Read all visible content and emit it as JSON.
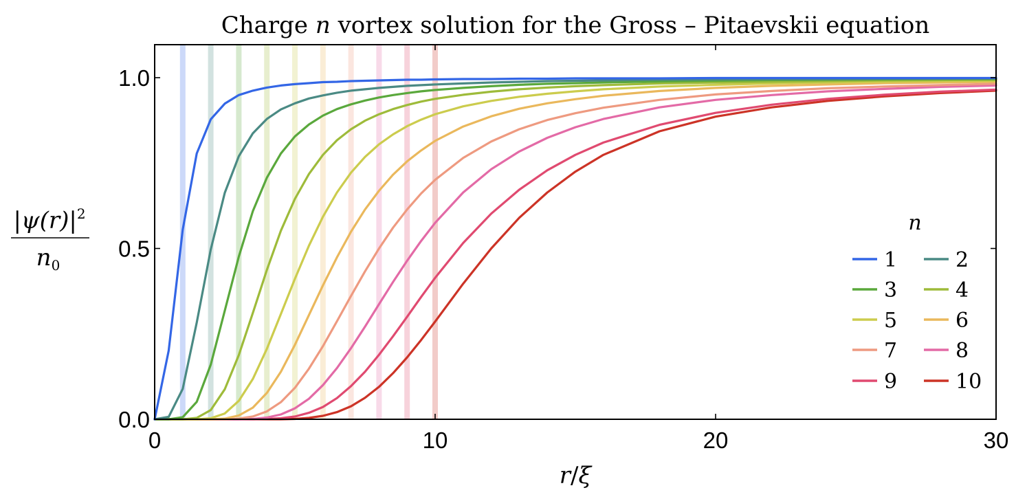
{
  "chart_data": {
    "type": "line",
    "title": "Charge n vortex solution for the Gross – Pitaevskii equation",
    "title_parts": {
      "prefix": "Charge ",
      "var": "n",
      "suffix": " vortex solution for the Gross – Pitaevskii equation"
    },
    "xlabel": "r/ξ",
    "xlabel_parts": {
      "num": "r",
      "slash": "/",
      "den": "ξ"
    },
    "ylabel": "|ψ(r)|² / n₀",
    "ylabel_parts": {
      "numerator": "|ψ(r)|",
      "exponent": "2",
      "denominator": "n",
      "den_sub": "0"
    },
    "xlim": [
      0,
      30
    ],
    "ylim": [
      0,
      1.1
    ],
    "xticks": [
      0,
      10,
      20,
      30
    ],
    "xtick_labels": [
      "0",
      "10",
      "20",
      "30"
    ],
    "yticks": [
      0,
      0.5,
      1
    ],
    "ytick_labels": [
      "0.0",
      "0.5",
      "1.0"
    ],
    "grid": false,
    "legend_title": "n",
    "legend_placement": "bottom-right",
    "vertical_markers": [
      1,
      2,
      3,
      4,
      5,
      6,
      7,
      8,
      9,
      10
    ],
    "x": [
      0,
      0.5,
      1,
      1.5,
      2,
      2.5,
      3,
      3.5,
      4,
      4.5,
      5,
      5.5,
      6,
      6.5,
      7,
      7.5,
      8,
      8.5,
      9,
      9.5,
      10,
      11,
      12,
      13,
      14,
      15,
      16,
      18,
      20,
      22,
      24,
      26,
      28,
      30
    ],
    "series": [
      {
        "name": "1",
        "color": "#3366e6",
        "values": [
          0,
          0.201,
          0.555,
          0.778,
          0.878,
          0.924,
          0.949,
          0.962,
          0.971,
          0.977,
          0.981,
          0.984,
          0.987,
          0.988,
          0.99,
          0.991,
          0.992,
          0.993,
          0.994,
          0.994,
          0.995,
          0.996,
          0.996,
          0.997,
          0.997,
          0.998,
          0.998,
          0.998,
          0.999,
          0.999,
          0.999,
          0.999,
          0.999,
          0.999
        ]
      },
      {
        "name": "2",
        "color": "#4a8a84",
        "values": [
          0,
          0.007,
          0.089,
          0.283,
          0.497,
          0.663,
          0.77,
          0.837,
          0.879,
          0.907,
          0.925,
          0.939,
          0.948,
          0.956,
          0.962,
          0.966,
          0.97,
          0.973,
          0.976,
          0.978,
          0.98,
          0.983,
          0.986,
          0.988,
          0.99,
          0.991,
          0.992,
          0.994,
          0.995,
          0.996,
          0.996,
          0.997,
          0.997,
          0.998
        ]
      },
      {
        "name": "3",
        "color": "#5aa83c",
        "values": [
          0,
          0,
          0.006,
          0.051,
          0.16,
          0.318,
          0.476,
          0.609,
          0.707,
          0.778,
          0.828,
          0.863,
          0.889,
          0.908,
          0.922,
          0.933,
          0.942,
          0.949,
          0.955,
          0.96,
          0.964,
          0.97,
          0.975,
          0.979,
          0.982,
          0.984,
          0.986,
          0.989,
          0.991,
          0.993,
          0.994,
          0.995,
          0.996,
          0.996
        ]
      },
      {
        "name": "4",
        "color": "#9ebb3a",
        "values": [
          0,
          0,
          0,
          0.004,
          0.027,
          0.088,
          0.188,
          0.311,
          0.437,
          0.552,
          0.645,
          0.718,
          0.774,
          0.817,
          0.849,
          0.874,
          0.893,
          0.908,
          0.92,
          0.93,
          0.938,
          0.95,
          0.959,
          0.966,
          0.971,
          0.975,
          0.978,
          0.983,
          0.986,
          0.988,
          0.99,
          0.992,
          0.993,
          0.994
        ]
      },
      {
        "name": "5",
        "color": "#cccc4d",
        "values": [
          0,
          0,
          0,
          0,
          0.003,
          0.017,
          0.054,
          0.118,
          0.206,
          0.308,
          0.411,
          0.508,
          0.593,
          0.664,
          0.722,
          0.768,
          0.805,
          0.834,
          0.858,
          0.877,
          0.893,
          0.916,
          0.932,
          0.944,
          0.953,
          0.96,
          0.966,
          0.974,
          0.979,
          0.983,
          0.986,
          0.988,
          0.99,
          0.991
        ]
      },
      {
        "name": "6",
        "color": "#eab85c",
        "values": [
          0,
          0,
          0,
          0,
          0,
          0.002,
          0.011,
          0.034,
          0.077,
          0.139,
          0.218,
          0.305,
          0.392,
          0.474,
          0.549,
          0.614,
          0.669,
          0.716,
          0.755,
          0.787,
          0.815,
          0.857,
          0.887,
          0.909,
          0.925,
          0.937,
          0.947,
          0.961,
          0.97,
          0.976,
          0.98,
          0.984,
          0.986,
          0.988
        ]
      },
      {
        "name": "7",
        "color": "#ee9a80",
        "values": [
          0,
          0,
          0,
          0,
          0,
          0,
          0.002,
          0.008,
          0.023,
          0.05,
          0.092,
          0.148,
          0.214,
          0.287,
          0.361,
          0.433,
          0.5,
          0.561,
          0.614,
          0.661,
          0.701,
          0.765,
          0.813,
          0.849,
          0.876,
          0.896,
          0.912,
          0.935,
          0.951,
          0.961,
          0.969,
          0.974,
          0.978,
          0.982
        ]
      },
      {
        "name": "8",
        "color": "#e36aa6",
        "values": [
          0,
          0,
          0,
          0,
          0,
          0,
          0,
          0.001,
          0.005,
          0.014,
          0.032,
          0.06,
          0.1,
          0.15,
          0.208,
          0.271,
          0.337,
          0.402,
          0.464,
          0.522,
          0.575,
          0.664,
          0.732,
          0.784,
          0.824,
          0.855,
          0.879,
          0.913,
          0.935,
          0.949,
          0.96,
          0.967,
          0.973,
          0.977
        ]
      },
      {
        "name": "9",
        "color": "#e04a70",
        "values": [
          0,
          0,
          0,
          0,
          0,
          0,
          0,
          0,
          0.001,
          0.003,
          0.008,
          0.019,
          0.036,
          0.062,
          0.097,
          0.139,
          0.189,
          0.243,
          0.3,
          0.358,
          0.414,
          0.516,
          0.602,
          0.672,
          0.729,
          0.774,
          0.81,
          0.862,
          0.897,
          0.921,
          0.938,
          0.95,
          0.959,
          0.965
        ]
      },
      {
        "name": "10",
        "color": "#cc3326",
        "values": [
          0,
          0,
          0,
          0,
          0,
          0,
          0,
          0,
          0,
          0,
          0.001,
          0.004,
          0.01,
          0.021,
          0.038,
          0.063,
          0.095,
          0.135,
          0.181,
          0.232,
          0.286,
          0.397,
          0.5,
          0.59,
          0.664,
          0.725,
          0.774,
          0.843,
          0.886,
          0.913,
          0.932,
          0.945,
          0.955,
          0.962
        ]
      }
    ]
  }
}
